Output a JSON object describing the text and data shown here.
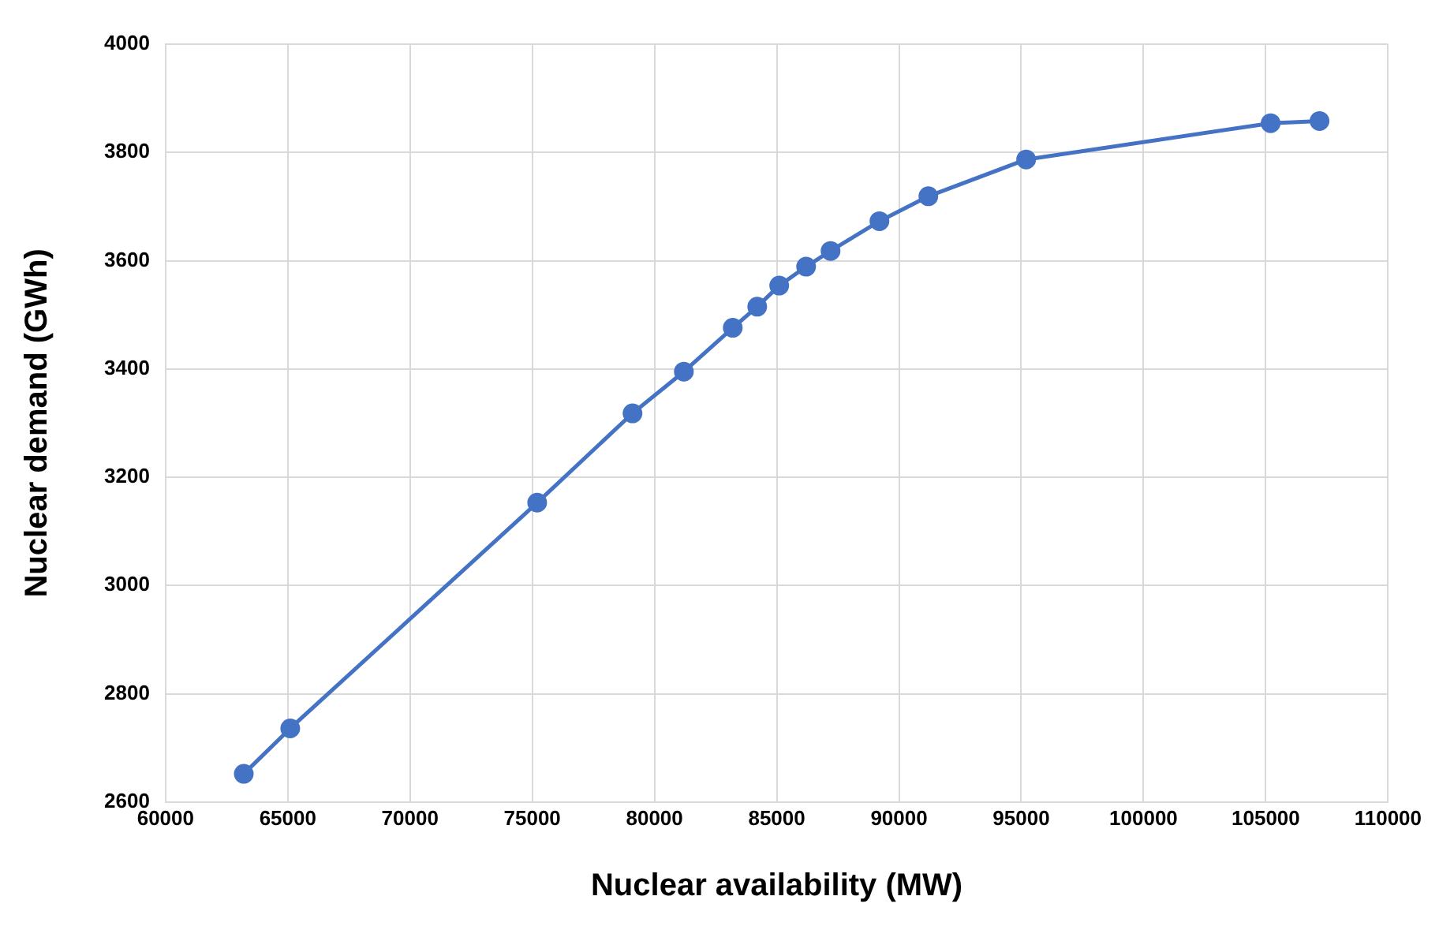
{
  "chart_data": {
    "type": "line",
    "xlabel": "Nuclear availability (MW)",
    "ylabel": "Nuclear demand (GWh)",
    "x": [
      63200,
      65100,
      75200,
      79100,
      81200,
      83200,
      84200,
      85100,
      86200,
      87200,
      89200,
      91200,
      95200,
      105200,
      107200
    ],
    "series": [
      {
        "color": "#4472c4",
        "values": [
          2652,
          2736,
          3153,
          3318,
          3395,
          3476,
          3515,
          3554,
          3589,
          3618,
          3673,
          3719,
          3787,
          3854,
          3858
        ]
      }
    ],
    "xlim": [
      60000,
      110000
    ],
    "xticks": [
      60000,
      65000,
      70000,
      75000,
      80000,
      85000,
      90000,
      95000,
      100000,
      105000,
      110000
    ],
    "ylim": [
      2600,
      4000
    ],
    "yticks": [
      2600,
      2800,
      3000,
      3200,
      3400,
      3600,
      3800,
      4000
    ],
    "grid": true,
    "marker": "circle",
    "line_style": "solid",
    "legend": false
  }
}
